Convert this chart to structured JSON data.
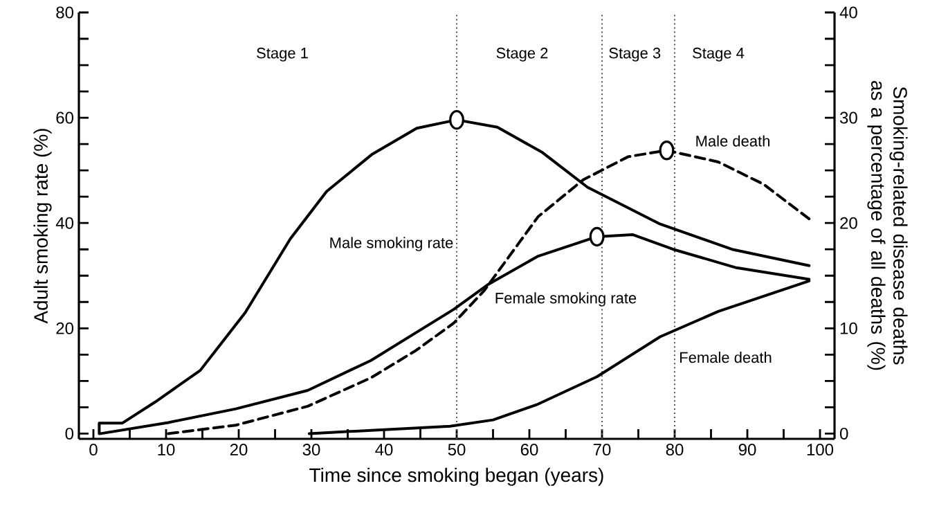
{
  "chart_data": {
    "type": "line",
    "xlabel": "Time since smoking began (years)",
    "ylabel": "Adult smoking rate (%)",
    "y2label": "Smoking-related disease deaths as a percentage of all deaths (%)",
    "xlim": [
      -2,
      102
    ],
    "xticks": [
      0,
      {
        "value": 5,
        "label": null
      },
      10,
      {
        "value": 15,
        "label": null
      },
      20,
      {
        "value": 25,
        "label": null
      },
      30,
      {
        "value": 35,
        "label": null
      },
      40,
      {
        "value": 45,
        "label": null
      },
      50,
      {
        "value": 55,
        "label": null
      },
      60,
      {
        "value": 65,
        "label": null
      },
      70,
      {
        "value": 75,
        "label": null
      },
      80,
      {
        "value": 85,
        "label": null
      },
      90,
      {
        "value": 95,
        "label": null
      },
      100
    ],
    "ylim": [
      -1,
      80
    ],
    "yticks": [
      0,
      {
        "value": 5,
        "label": null
      },
      {
        "value": 10,
        "label": null
      },
      {
        "value": 15,
        "label": null
      },
      20,
      {
        "value": 25,
        "label": null
      },
      {
        "value": 30,
        "label": null
      },
      {
        "value": 35,
        "label": null
      },
      40,
      {
        "value": 45,
        "label": null
      },
      {
        "value": 50,
        "label": null
      },
      {
        "value": 55,
        "label": null
      },
      60,
      {
        "value": 65,
        "label": null
      },
      {
        "value": 70,
        "label": null
      },
      {
        "value": 75,
        "label": null
      },
      80
    ],
    "y2lim": [
      -0.5,
      40
    ],
    "y2ticks": [
      0,
      {
        "value": 2.5,
        "label": null
      },
      {
        "value": 5,
        "label": null
      },
      {
        "value": 7.5,
        "label": null
      },
      10,
      {
        "value": 12.5,
        "label": null
      },
      {
        "value": 15,
        "label": null
      },
      {
        "value": 17.5,
        "label": null
      },
      20,
      {
        "value": 22.5,
        "label": null
      },
      {
        "value": 25,
        "label": null
      },
      {
        "value": 27.5,
        "label": null
      },
      30,
      {
        "value": 32.5,
        "label": null
      },
      {
        "value": 35,
        "label": null
      },
      {
        "value": 37.5,
        "label": null
      },
      40
    ],
    "series": [
      {
        "name": "Male smoking rate",
        "color": "#000000",
        "x": [
          0.8,
          0.8,
          4,
          8.5,
          14.7,
          20.9,
          27.1,
          32.1,
          38.3,
          44.5,
          50,
          55.6,
          61.8,
          68,
          78,
          87.9,
          98.5
        ],
        "values": [
          0,
          2,
          2,
          6,
          12,
          23,
          37,
          46,
          53,
          58,
          59.6,
          58.2,
          53.4,
          46.8,
          39.8,
          35,
          31.9
        ]
      },
      {
        "name": "Female smoking rate",
        "color": "#000000",
        "x": [
          1,
          10.3,
          19.6,
          29.5,
          38.2,
          49.6,
          54.4,
          61.2,
          69.3,
          74.2,
          79.8,
          88.5,
          98.5
        ],
        "values": [
          0,
          2.1,
          4.7,
          8.2,
          13.9,
          23.6,
          28.4,
          33.7,
          37.4,
          37.8,
          35,
          31.5,
          29.3
        ]
      },
      {
        "name": "Male death",
        "color": "#000000",
        "axis": "y2",
        "line_style": "dashed",
        "x": [
          10.3,
          19.6,
          29.5,
          38.2,
          44.4,
          49.6,
          53.8,
          61.2,
          67.4,
          73.6,
          78.9,
          86,
          92.2,
          98.5
        ],
        "values": [
          0,
          0.8,
          2.6,
          5.3,
          7.9,
          10.5,
          13.6,
          20.6,
          24.1,
          26.3,
          26.9,
          25.8,
          23.7,
          20.4
        ]
      },
      {
        "name": "Female death",
        "color": "#000000",
        "axis": "y2",
        "x": [
          29.7,
          49.1,
          55,
          61.2,
          69.3,
          78,
          86,
          98.5
        ],
        "values": [
          0,
          0.7,
          1.3,
          2.8,
          5.4,
          9.2,
          11.6,
          14.5
        ]
      },
      {
        "type": "scatter",
        "marker": "circle",
        "color": "#000000",
        "x": [
          50,
          69.3
        ],
        "values": [
          59.6,
          37.4
        ]
      },
      {
        "type": "scatter",
        "marker": "circle",
        "color": "#000000",
        "axis": "y2",
        "x": [
          78.9
        ],
        "values": [
          26.9
        ]
      }
    ],
    "ref_lines": [
      {
        "axis": "x",
        "value": 50,
        "color": "#555555",
        "line_style": "dotted"
      },
      {
        "axis": "x",
        "value": 70,
        "color": "#555555",
        "line_style": "dotted"
      },
      {
        "axis": "x",
        "value": 80,
        "color": "#555555",
        "line_style": "dotted"
      }
    ],
    "annotations": [
      "Stage 1",
      "Stage 2",
      "Stage 3",
      "Stage 4"
    ]
  }
}
